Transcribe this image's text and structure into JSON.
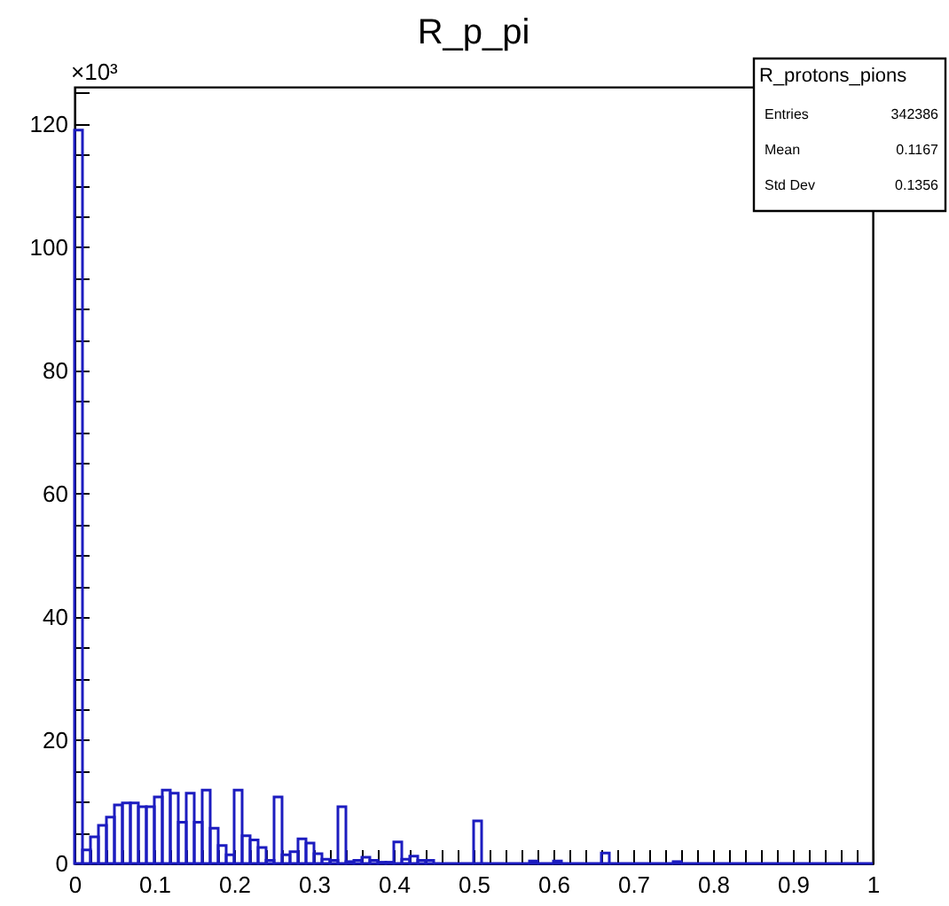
{
  "chart_data": {
    "type": "histogram",
    "title": "R_p_pi",
    "bins": [
      0,
      0.01,
      0.02,
      0.03,
      0.04,
      0.05,
      0.06,
      0.07,
      0.08,
      0.09,
      0.1,
      0.11,
      0.12,
      0.13,
      0.14,
      0.15,
      0.16,
      0.17,
      0.18,
      0.19,
      0.2,
      0.21,
      0.22,
      0.23,
      0.24,
      0.25,
      0.26,
      0.27,
      0.28,
      0.29,
      0.3,
      0.31,
      0.32,
      0.33,
      0.34,
      0.35,
      0.36,
      0.37,
      0.38,
      0.39,
      0.4,
      0.41,
      0.42,
      0.43,
      0.44,
      0.45,
      0.46,
      0.47,
      0.48,
      0.49,
      0.5,
      0.51,
      0.52,
      0.53,
      0.54,
      0.55,
      0.56,
      0.57,
      0.58,
      0.59,
      0.6,
      0.61,
      0.62,
      0.63,
      0.64,
      0.65,
      0.66,
      0.67,
      0.68,
      0.69,
      0.7,
      0.71,
      0.72,
      0.73,
      0.74,
      0.75,
      0.76,
      0.77,
      0.78,
      0.79,
      0.8,
      0.81,
      0.82,
      0.83,
      0.84,
      0.85,
      0.86,
      0.87,
      0.88,
      0.89,
      0.9,
      0.91,
      0.92,
      0.93,
      0.94,
      0.95,
      0.96,
      0.97,
      0.98,
      0.99,
      1
    ],
    "values": [
      119,
      2.2,
      4.3,
      6.2,
      7.5,
      9.5,
      9.8,
      9.8,
      9.2,
      9.2,
      10.8,
      11.9,
      11.4,
      6.7,
      11.4,
      6.7,
      11.9,
      5.7,
      2.9,
      1.4,
      11.9,
      4.5,
      3.8,
      2.6,
      0.5,
      10.8,
      1.4,
      1.9,
      4,
      3.3,
      1.6,
      0.7,
      0.5,
      9.2,
      0.3,
      0.5,
      1,
      0.5,
      0.2,
      0.2,
      3.5,
      0.7,
      1.2,
      0.5,
      0.5,
      0,
      0,
      0,
      0,
      0,
      6.9,
      0,
      0,
      0,
      0,
      0,
      0,
      0.4,
      0,
      0,
      0.4,
      0,
      0,
      0,
      0,
      0,
      1.7,
      0,
      0,
      0,
      0,
      0,
      0,
      0,
      0,
      0.3,
      0,
      0,
      0,
      0,
      0,
      0,
      0,
      0,
      0,
      0,
      0,
      0,
      0,
      0,
      0,
      0,
      0,
      0,
      0,
      0,
      0,
      0,
      0,
      0
    ],
    "color": "#1c1cc0",
    "xlim": [
      0,
      1
    ],
    "xticks": [
      0,
      {
        "value": 0.02,
        "label": null
      },
      {
        "value": 0.04,
        "label": null
      },
      {
        "value": 0.06,
        "label": null
      },
      {
        "value": 0.08,
        "label": null
      },
      0.1,
      {
        "value": 0.12,
        "label": null
      },
      {
        "value": 0.14,
        "label": null
      },
      {
        "value": 0.16,
        "label": null
      },
      {
        "value": 0.18,
        "label": null
      },
      0.2,
      {
        "value": 0.22,
        "label": null
      },
      {
        "value": 0.24,
        "label": null
      },
      {
        "value": 0.26,
        "label": null
      },
      {
        "value": 0.28,
        "label": null
      },
      0.3,
      {
        "value": 0.32,
        "label": null
      },
      {
        "value": 0.34,
        "label": null
      },
      {
        "value": 0.36,
        "label": null
      },
      {
        "value": 0.38,
        "label": null
      },
      0.4,
      {
        "value": 0.42,
        "label": null
      },
      {
        "value": 0.44,
        "label": null
      },
      {
        "value": 0.46,
        "label": null
      },
      {
        "value": 0.48,
        "label": null
      },
      0.5,
      {
        "value": 0.52,
        "label": null
      },
      {
        "value": 0.54,
        "label": null
      },
      {
        "value": 0.56,
        "label": null
      },
      {
        "value": 0.58,
        "label": null
      },
      0.6,
      {
        "value": 0.62,
        "label": null
      },
      {
        "value": 0.64,
        "label": null
      },
      {
        "value": 0.66,
        "label": null
      },
      {
        "value": 0.68,
        "label": null
      },
      0.7,
      {
        "value": 0.72,
        "label": null
      },
      {
        "value": 0.74,
        "label": null
      },
      {
        "value": 0.76,
        "label": null
      },
      {
        "value": 0.78,
        "label": null
      },
      0.8,
      {
        "value": 0.82,
        "label": null
      },
      {
        "value": 0.84,
        "label": null
      },
      {
        "value": 0.86,
        "label": null
      },
      {
        "value": 0.88,
        "label": null
      },
      0.9,
      {
        "value": 0.92,
        "label": null
      },
      {
        "value": 0.94,
        "label": null
      },
      {
        "value": 0.96,
        "label": null
      },
      {
        "value": 0.98,
        "label": null
      },
      1
    ],
    "ylim": [
      0,
      126
    ],
    "yticks": [
      0,
      {
        "value": 5,
        "label": null
      },
      {
        "value": 10,
        "label": null
      },
      {
        "value": 15,
        "label": null
      },
      20,
      {
        "value": 25,
        "label": null
      },
      {
        "value": 30,
        "label": null
      },
      {
        "value": 35,
        "label": null
      },
      40,
      {
        "value": 45,
        "label": null
      },
      {
        "value": 50,
        "label": null
      },
      {
        "value": 55,
        "label": null
      },
      60,
      {
        "value": 65,
        "label": null
      },
      {
        "value": 70,
        "label": null
      },
      {
        "value": 75,
        "label": null
      },
      80,
      {
        "value": 85,
        "label": null
      },
      {
        "value": 90,
        "label": null
      },
      {
        "value": 95,
        "label": null
      },
      100,
      {
        "value": 105,
        "label": null
      },
      {
        "value": 110,
        "label": null
      },
      {
        "value": 115,
        "label": null
      },
      120,
      {
        "value": 125,
        "label": null
      }
    ],
    "annotations": [
      "×10³",
      "R_protons_pions",
      "Entries",
      "342386",
      "Mean",
      "0.1167",
      "Std Dev",
      "0.1356"
    ]
  }
}
